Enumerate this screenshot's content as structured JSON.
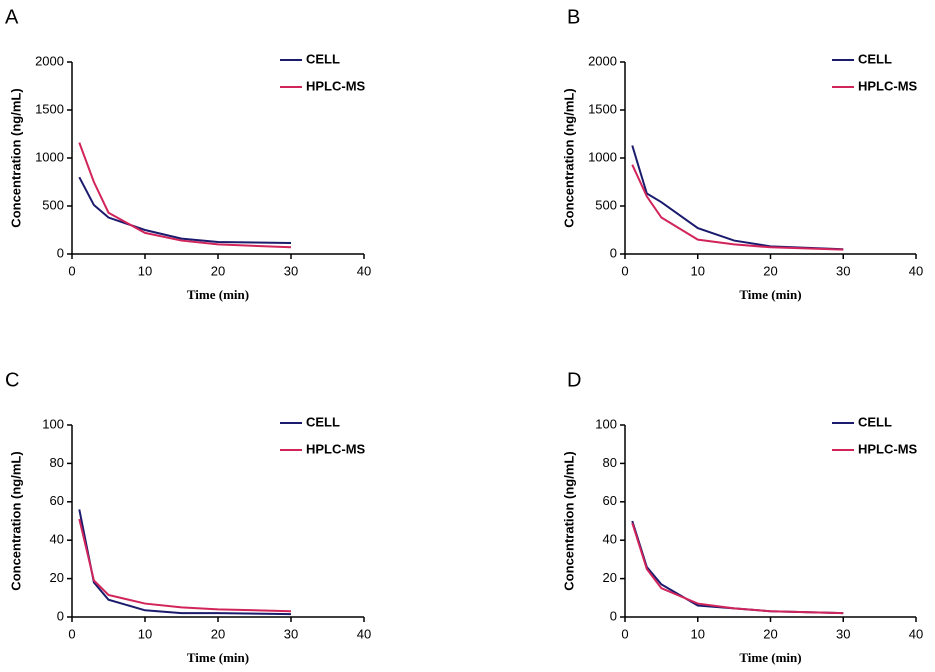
{
  "chart_data": [
    {
      "type": "line",
      "panel": "A",
      "ylabel": "Concentration (ng/mL)",
      "xlabel": "Time (min)",
      "x": [
        1,
        3,
        5,
        10,
        15,
        20,
        30
      ],
      "series": [
        {
          "name": "CELL",
          "color": "#1b1b6e",
          "values": [
            800,
            510,
            380,
            250,
            160,
            125,
            115
          ]
        },
        {
          "name": "HPLC-MS",
          "color": "#d1245a",
          "values": [
            1160,
            750,
            430,
            220,
            140,
            100,
            70
          ]
        }
      ],
      "xlim": [
        0,
        40
      ],
      "xticks": [
        0,
        10,
        20,
        30,
        40
      ],
      "ylim": [
        0,
        2000
      ],
      "yticks": [
        0,
        500,
        1000,
        1500,
        2000
      ]
    },
    {
      "type": "line",
      "panel": "B",
      "ylabel": "Concentration (ng/mL)",
      "xlabel": "Time (min)",
      "x": [
        1,
        3,
        5,
        10,
        15,
        20,
        30
      ],
      "series": [
        {
          "name": "CELL",
          "color": "#1b1b6e",
          "values": [
            1130,
            630,
            540,
            270,
            140,
            80,
            50
          ]
        },
        {
          "name": "HPLC-MS",
          "color": "#d1245a",
          "values": [
            930,
            600,
            380,
            150,
            100,
            70,
            45
          ]
        }
      ],
      "xlim": [
        0,
        40
      ],
      "xticks": [
        0,
        10,
        20,
        30,
        40
      ],
      "ylim": [
        0,
        2000
      ],
      "yticks": [
        0,
        500,
        1000,
        1500,
        2000
      ]
    },
    {
      "type": "line",
      "panel": "C",
      "ylabel": "Concentration (ng/mL)",
      "xlabel": "Time (min)",
      "x": [
        1,
        3,
        5,
        10,
        15,
        20,
        30
      ],
      "series": [
        {
          "name": "CELL",
          "color": "#1b1b6e",
          "values": [
            56,
            18,
            9,
            3.5,
            2,
            2,
            1.5
          ]
        },
        {
          "name": "HPLC-MS",
          "color": "#d1245a",
          "values": [
            51,
            19,
            11.5,
            7,
            5,
            4,
            3
          ]
        }
      ],
      "xlim": [
        0,
        40
      ],
      "xticks": [
        0,
        10,
        20,
        30,
        40
      ],
      "ylim": [
        0,
        100
      ],
      "yticks": [
        0,
        20,
        40,
        60,
        80,
        100
      ]
    },
    {
      "type": "line",
      "panel": "D",
      "ylabel": "Concentration (ng/mL)",
      "xlabel": "Time (min)",
      "x": [
        1,
        3,
        5,
        10,
        15,
        20,
        30
      ],
      "series": [
        {
          "name": "CELL",
          "color": "#1b1b6e",
          "values": [
            50,
            26,
            17,
            6,
            4.5,
            3,
            2
          ]
        },
        {
          "name": "HPLC-MS",
          "color": "#d1245a",
          "values": [
            49,
            25,
            15,
            7,
            4.5,
            3,
            2
          ]
        }
      ],
      "xlim": [
        0,
        40
      ],
      "xticks": [
        0,
        10,
        20,
        30,
        40
      ],
      "ylim": [
        0,
        100
      ],
      "yticks": [
        0,
        20,
        40,
        60,
        80,
        100
      ]
    }
  ]
}
